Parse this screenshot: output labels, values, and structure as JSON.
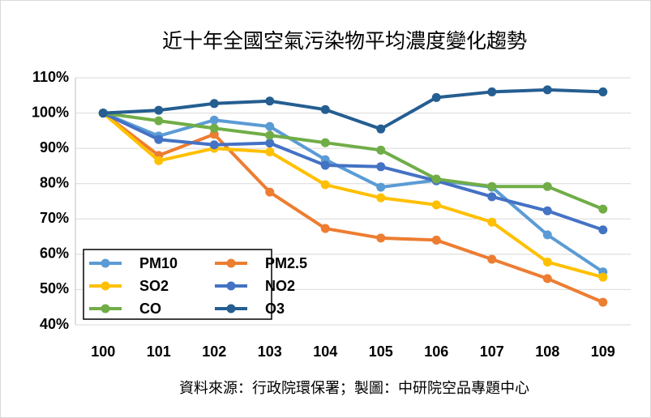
{
  "chart_data": {
    "type": "line",
    "title": "近十年全國空氣污染物平均濃度變化趨勢",
    "source": "資料來源：行政院環保署；製圖：中研院空品專題中心",
    "categories": [
      "100",
      "101",
      "102",
      "103",
      "104",
      "105",
      "106",
      "107",
      "108",
      "109"
    ],
    "series": [
      {
        "name": "PM10",
        "color": "#5b9bd5",
        "values": [
          100,
          93.5,
          98,
          96.2,
          86.8,
          79,
          81,
          79,
          65.5,
          55
        ]
      },
      {
        "name": "PM2.5",
        "color": "#ed7d31",
        "values": [
          100,
          88,
          94,
          77.6,
          67.3,
          64.6,
          64,
          58.6,
          53.1,
          46.4
        ]
      },
      {
        "name": "SO2",
        "color": "#ffc000",
        "values": [
          100,
          86.5,
          90,
          89,
          79.7,
          76,
          74,
          69.1,
          57.8,
          53.5
        ]
      },
      {
        "name": "NO2",
        "color": "#4472c4",
        "values": [
          100,
          92.5,
          91,
          91.5,
          85.2,
          84.8,
          80.8,
          76.3,
          72.3,
          66.9
        ]
      },
      {
        "name": "CO",
        "color": "#70ad47",
        "values": [
          100,
          97.8,
          95.7,
          93.7,
          91.6,
          89.5,
          81.3,
          79.2,
          79.2,
          72.8
        ]
      },
      {
        "name": "O3",
        "color": "#255e91",
        "values": [
          100,
          100.8,
          102.7,
          103.4,
          101,
          95.5,
          104.4,
          106,
          106.6,
          106
        ]
      }
    ],
    "ylim": [
      40,
      110
    ],
    "yticks": [
      {
        "value": 40,
        "label": "40%"
      },
      {
        "value": 50,
        "label": "50%"
      },
      {
        "value": 60,
        "label": "60%"
      },
      {
        "value": 70,
        "label": "70%"
      },
      {
        "value": 80,
        "label": "80%"
      },
      {
        "value": 90,
        "label": "90%"
      },
      {
        "value": 100,
        "label": "100%"
      },
      {
        "value": 110,
        "label": "110%"
      }
    ],
    "grid": true,
    "legend": "bottom-left"
  }
}
